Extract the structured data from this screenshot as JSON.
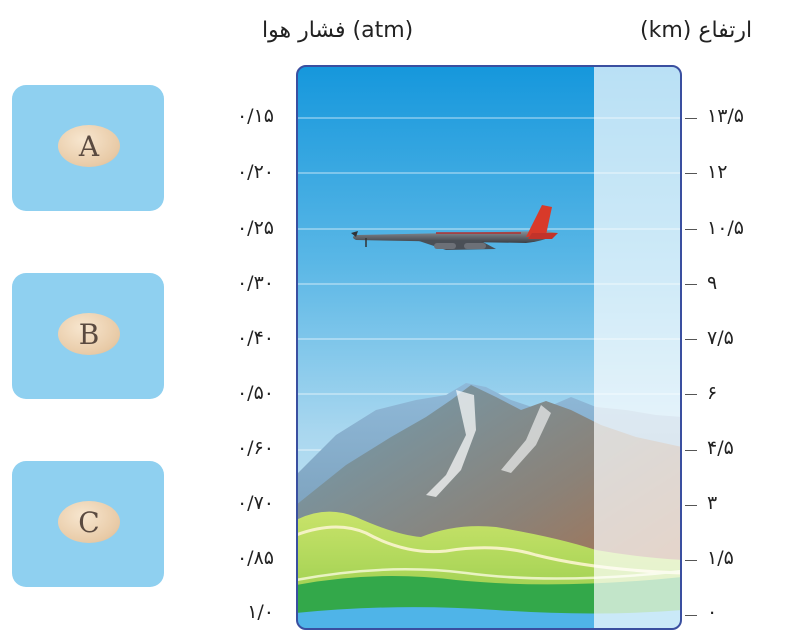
{
  "titles": {
    "pressure": "(atm) فشار هوا",
    "altitude": "ارتفاع (km)"
  },
  "boxes": [
    {
      "label": "A"
    },
    {
      "label": "B"
    },
    {
      "label": "C"
    }
  ],
  "pressure_labels": [
    "۰/۱۵",
    "۰/۲۰",
    "۰/۲۵",
    "۰/۳۰",
    "۰/۴۰",
    "۰/۵۰",
    "۰/۶۰",
    "۰/۷۰",
    "۰/۸۵",
    "۱/۰"
  ],
  "altitude_labels": [
    "۱۳/۵",
    "۱۲",
    "۱۰/۵",
    "۹",
    "۷/۵",
    "۶",
    "۴/۵",
    "۳",
    "۱/۵",
    "۰"
  ],
  "colors": {
    "sky_top": "#1a9ee0",
    "sky_bottom": "#cfe9f6",
    "box": "#8fd0f0",
    "frame": "#3a4fa0",
    "plane_tail": "#d83a2a"
  }
}
